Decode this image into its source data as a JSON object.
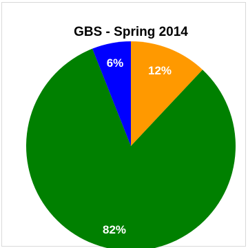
{
  "chart_data": {
    "type": "pie",
    "title": "GBS - Spring 2014",
    "slices": [
      {
        "value": 12,
        "label": "12%",
        "color": "#ff9900"
      },
      {
        "value": 82,
        "label": "82%",
        "color": "#008000"
      },
      {
        "value": 6,
        "label": "6%",
        "color": "#0000ff"
      }
    ],
    "start_angle": "12 o'clock",
    "direction": "clockwise",
    "legend": "none"
  }
}
